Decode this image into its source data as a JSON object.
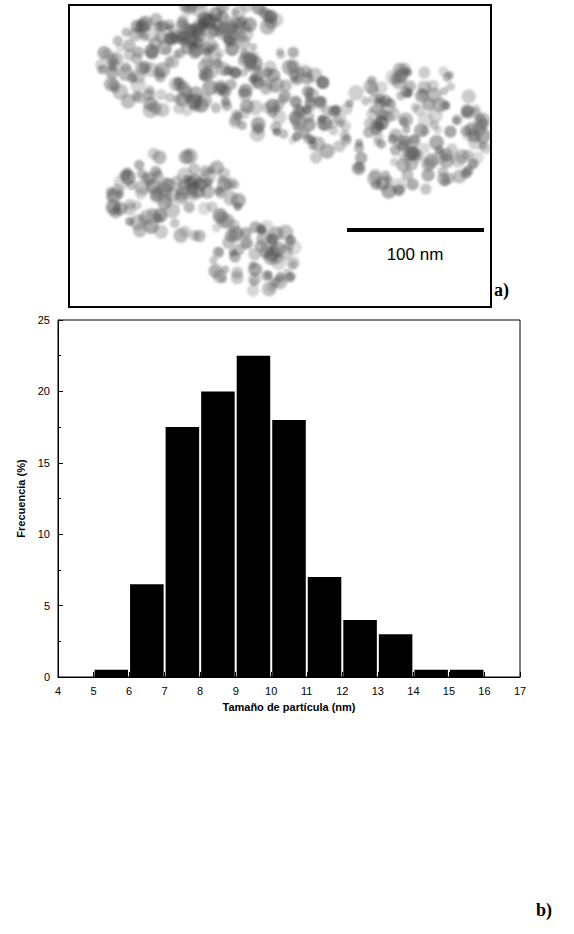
{
  "micrograph": {
    "label": "a)",
    "scale_bar": "100 nm"
  },
  "chart_data": {
    "type": "histogram",
    "label": "b)",
    "xlabel": "Tamaño de partícula (nm)",
    "ylabel": "Frecuencia (%)",
    "bins": [
      5,
      6,
      7,
      8,
      9,
      10,
      11,
      12,
      13,
      14,
      15,
      16
    ],
    "values": [
      0.5,
      6.5,
      17.5,
      20,
      22.5,
      18,
      7,
      4,
      3,
      0.5,
      0.5
    ],
    "color": "#000000",
    "xlim": [
      4,
      17
    ],
    "xticks": [
      4,
      5,
      6,
      7,
      8,
      9,
      10,
      11,
      12,
      13,
      14,
      15,
      16,
      17
    ],
    "ylim": [
      0,
      25
    ],
    "yticks": [
      0,
      5,
      10,
      15,
      20,
      25
    ],
    "grid": false
  }
}
